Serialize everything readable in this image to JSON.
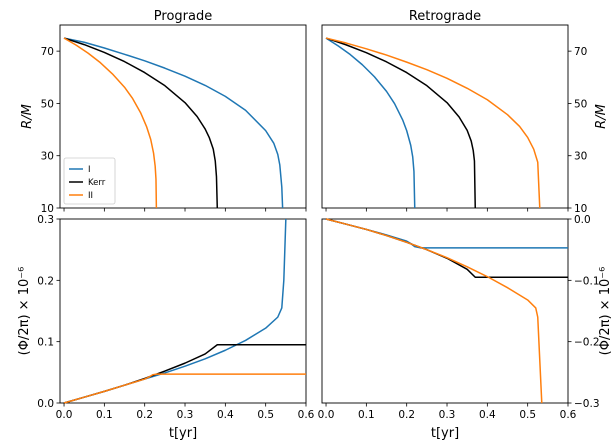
{
  "colors": {
    "I": "#1f77b4",
    "Kerr": "#000000",
    "II": "#ff7f0e"
  },
  "chart_data": [
    {
      "id": "prograde-radius",
      "type": "line",
      "title": "Prograde",
      "xlabel": "",
      "ylabel": "R/M",
      "xlim": [
        -0.01,
        0.6
      ],
      "ylim": [
        10,
        80
      ],
      "xticks": [
        0.0,
        0.1,
        0.2,
        0.3,
        0.4,
        0.5,
        0.6
      ],
      "xtick_labels": [
        "",
        "",
        "",
        "",
        "",
        "",
        ""
      ],
      "yticks": [
        10,
        30,
        50,
        70
      ],
      "ytick_labels": [
        "10",
        "30",
        "50",
        "70"
      ],
      "ylabel_side": "left",
      "legend": {
        "position": "lower-left",
        "entries": [
          "I",
          "Kerr",
          "II"
        ]
      },
      "series": [
        {
          "name": "I",
          "color_key": "I",
          "x": [
            0.0,
            0.05,
            0.1,
            0.15,
            0.2,
            0.25,
            0.3,
            0.35,
            0.4,
            0.45,
            0.5,
            0.52,
            0.53,
            0.535,
            0.54,
            0.542
          ],
          "y": [
            75,
            73.4,
            71.2,
            68.8,
            66.3,
            63.5,
            60.4,
            56.9,
            52.7,
            47.4,
            39.6,
            34.8,
            30.5,
            26.5,
            18.0,
            10
          ]
        },
        {
          "name": "Kerr",
          "color_key": "Kerr",
          "x": [
            0.0,
            0.05,
            0.1,
            0.15,
            0.2,
            0.25,
            0.3,
            0.33,
            0.35,
            0.36,
            0.37,
            0.375,
            0.378,
            0.38
          ],
          "y": [
            75,
            72.5,
            69.5,
            66.0,
            61.8,
            56.8,
            50.3,
            45.0,
            40.2,
            37.0,
            32.5,
            28.0,
            22.0,
            10
          ]
        },
        {
          "name": "II",
          "color_key": "II",
          "x": [
            0.0,
            0.03,
            0.06,
            0.09,
            0.12,
            0.15,
            0.17,
            0.19,
            0.205,
            0.215,
            0.222,
            0.226,
            0.228,
            0.229
          ],
          "y": [
            75,
            72.3,
            69.2,
            65.6,
            61.3,
            56.2,
            51.9,
            46.4,
            41.0,
            36.2,
            31.0,
            26.0,
            21.0,
            10
          ]
        }
      ]
    },
    {
      "id": "retrograde-radius",
      "type": "line",
      "title": "Retrograde",
      "xlabel": "",
      "ylabel": "R/M",
      "xlim": [
        -0.01,
        0.6
      ],
      "ylim": [
        10,
        80
      ],
      "xticks": [
        0.0,
        0.1,
        0.2,
        0.3,
        0.4,
        0.5,
        0.6
      ],
      "xtick_labels": [
        "",
        "",
        "",
        "",
        "",
        "",
        ""
      ],
      "yticks": [
        10,
        30,
        50,
        70
      ],
      "ytick_labels": [
        "10",
        "30",
        "50",
        "70"
      ],
      "ylabel_side": "right",
      "series": [
        {
          "name": "I",
          "color_key": "I",
          "x": [
            0.0,
            0.03,
            0.06,
            0.09,
            0.12,
            0.15,
            0.17,
            0.19,
            0.2,
            0.21,
            0.215,
            0.218,
            0.22
          ],
          "y": [
            75,
            72.0,
            68.7,
            64.8,
            60.2,
            54.6,
            49.9,
            43.7,
            39.6,
            34.0,
            29.5,
            24.0,
            10
          ]
        },
        {
          "name": "Kerr",
          "color_key": "Kerr",
          "x": [
            0.0,
            0.05,
            0.1,
            0.15,
            0.2,
            0.25,
            0.3,
            0.33,
            0.35,
            0.36,
            0.365,
            0.368,
            0.37
          ],
          "y": [
            75,
            72.4,
            69.4,
            65.9,
            61.8,
            56.8,
            50.3,
            44.8,
            39.7,
            35.6,
            32.0,
            28.0,
            10
          ]
        },
        {
          "name": "II",
          "color_key": "II",
          "x": [
            0.0,
            0.05,
            0.1,
            0.15,
            0.2,
            0.25,
            0.3,
            0.35,
            0.4,
            0.45,
            0.48,
            0.5,
            0.515,
            0.525,
            0.53
          ],
          "y": [
            75,
            73.1,
            70.9,
            68.5,
            65.8,
            62.9,
            59.6,
            55.8,
            51.4,
            45.7,
            41.2,
            37.0,
            32.5,
            27.5,
            10
          ]
        }
      ]
    },
    {
      "id": "prograde-phase",
      "type": "line",
      "title": "",
      "xlabel": "t[yr]",
      "ylabel": "(Φ/2π) × 10⁻⁶",
      "xlim": [
        -0.01,
        0.6
      ],
      "ylim": [
        0.0,
        0.3
      ],
      "xticks": [
        0.0,
        0.1,
        0.2,
        0.3,
        0.4,
        0.5,
        0.6
      ],
      "xtick_labels": [
        "0.0",
        "0.1",
        "0.2",
        "0.3",
        "0.4",
        "0.5",
        "0.6"
      ],
      "yticks": [
        0.0,
        0.1,
        0.2,
        0.3
      ],
      "ytick_labels": [
        "0.0",
        "0.1",
        "0.2",
        "0.3"
      ],
      "ylabel_side": "left",
      "series": [
        {
          "name": "I",
          "color_key": "I",
          "x": [
            0.0,
            0.05,
            0.1,
            0.15,
            0.2,
            0.25,
            0.3,
            0.35,
            0.4,
            0.45,
            0.5,
            0.53,
            0.54,
            0.545,
            0.55
          ],
          "y": [
            0.0,
            0.0095,
            0.019,
            0.029,
            0.039,
            0.049,
            0.06,
            0.072,
            0.086,
            0.102,
            0.122,
            0.14,
            0.155,
            0.2,
            0.3
          ]
        },
        {
          "name": "Kerr",
          "color_key": "Kerr",
          "x": [
            0.0,
            0.05,
            0.1,
            0.15,
            0.2,
            0.25,
            0.3,
            0.35,
            0.38,
            0.6
          ],
          "y": [
            0.0,
            0.0095,
            0.019,
            0.029,
            0.04,
            0.052,
            0.065,
            0.08,
            0.095,
            0.095
          ]
        },
        {
          "name": "II",
          "color_key": "II",
          "x": [
            0.0,
            0.05,
            0.1,
            0.15,
            0.2,
            0.21,
            0.22,
            0.23,
            0.26,
            0.6
          ],
          "y": [
            0.0,
            0.0095,
            0.019,
            0.029,
            0.039,
            0.042,
            0.046,
            0.047,
            0.047,
            0.047
          ]
        }
      ]
    },
    {
      "id": "retrograde-phase",
      "type": "line",
      "title": "",
      "xlabel": "t[yr]",
      "ylabel": "(Φ/2π) × 10⁻⁶",
      "xlim": [
        -0.01,
        0.6
      ],
      "ylim": [
        -0.3,
        0.0
      ],
      "xticks": [
        0.0,
        0.1,
        0.2,
        0.3,
        0.4,
        0.5,
        0.6
      ],
      "xtick_labels": [
        "0.0",
        "0.1",
        "0.2",
        "0.3",
        "0.4",
        "0.5",
        "0.6"
      ],
      "yticks": [
        -0.3,
        -0.2,
        -0.1,
        0.0
      ],
      "ytick_labels": [
        "−0.3",
        "−0.2",
        "−0.1",
        "0.0"
      ],
      "ylabel_side": "right",
      "series": [
        {
          "name": "I",
          "color_key": "I",
          "x": [
            0.0,
            0.05,
            0.1,
            0.15,
            0.2,
            0.21,
            0.22,
            0.235,
            0.25,
            0.6
          ],
          "y": [
            0.0,
            -0.0085,
            -0.017,
            -0.026,
            -0.036,
            -0.04,
            -0.045,
            -0.047,
            -0.047,
            -0.047
          ]
        },
        {
          "name": "Kerr",
          "color_key": "Kerr",
          "x": [
            0.0,
            0.05,
            0.1,
            0.15,
            0.2,
            0.25,
            0.3,
            0.35,
            0.37,
            0.6
          ],
          "y": [
            0.0,
            -0.0085,
            -0.017,
            -0.027,
            -0.038,
            -0.05,
            -0.064,
            -0.082,
            -0.095,
            -0.095
          ]
        },
        {
          "name": "II",
          "color_key": "II",
          "x": [
            0.0,
            0.05,
            0.1,
            0.15,
            0.2,
            0.25,
            0.3,
            0.35,
            0.4,
            0.45,
            0.5,
            0.52,
            0.525,
            0.53,
            0.535
          ],
          "y": [
            0.0,
            -0.0085,
            -0.017,
            -0.027,
            -0.038,
            -0.05,
            -0.063,
            -0.078,
            -0.094,
            -0.112,
            -0.132,
            -0.145,
            -0.16,
            -0.23,
            -0.3
          ]
        }
      ]
    }
  ]
}
